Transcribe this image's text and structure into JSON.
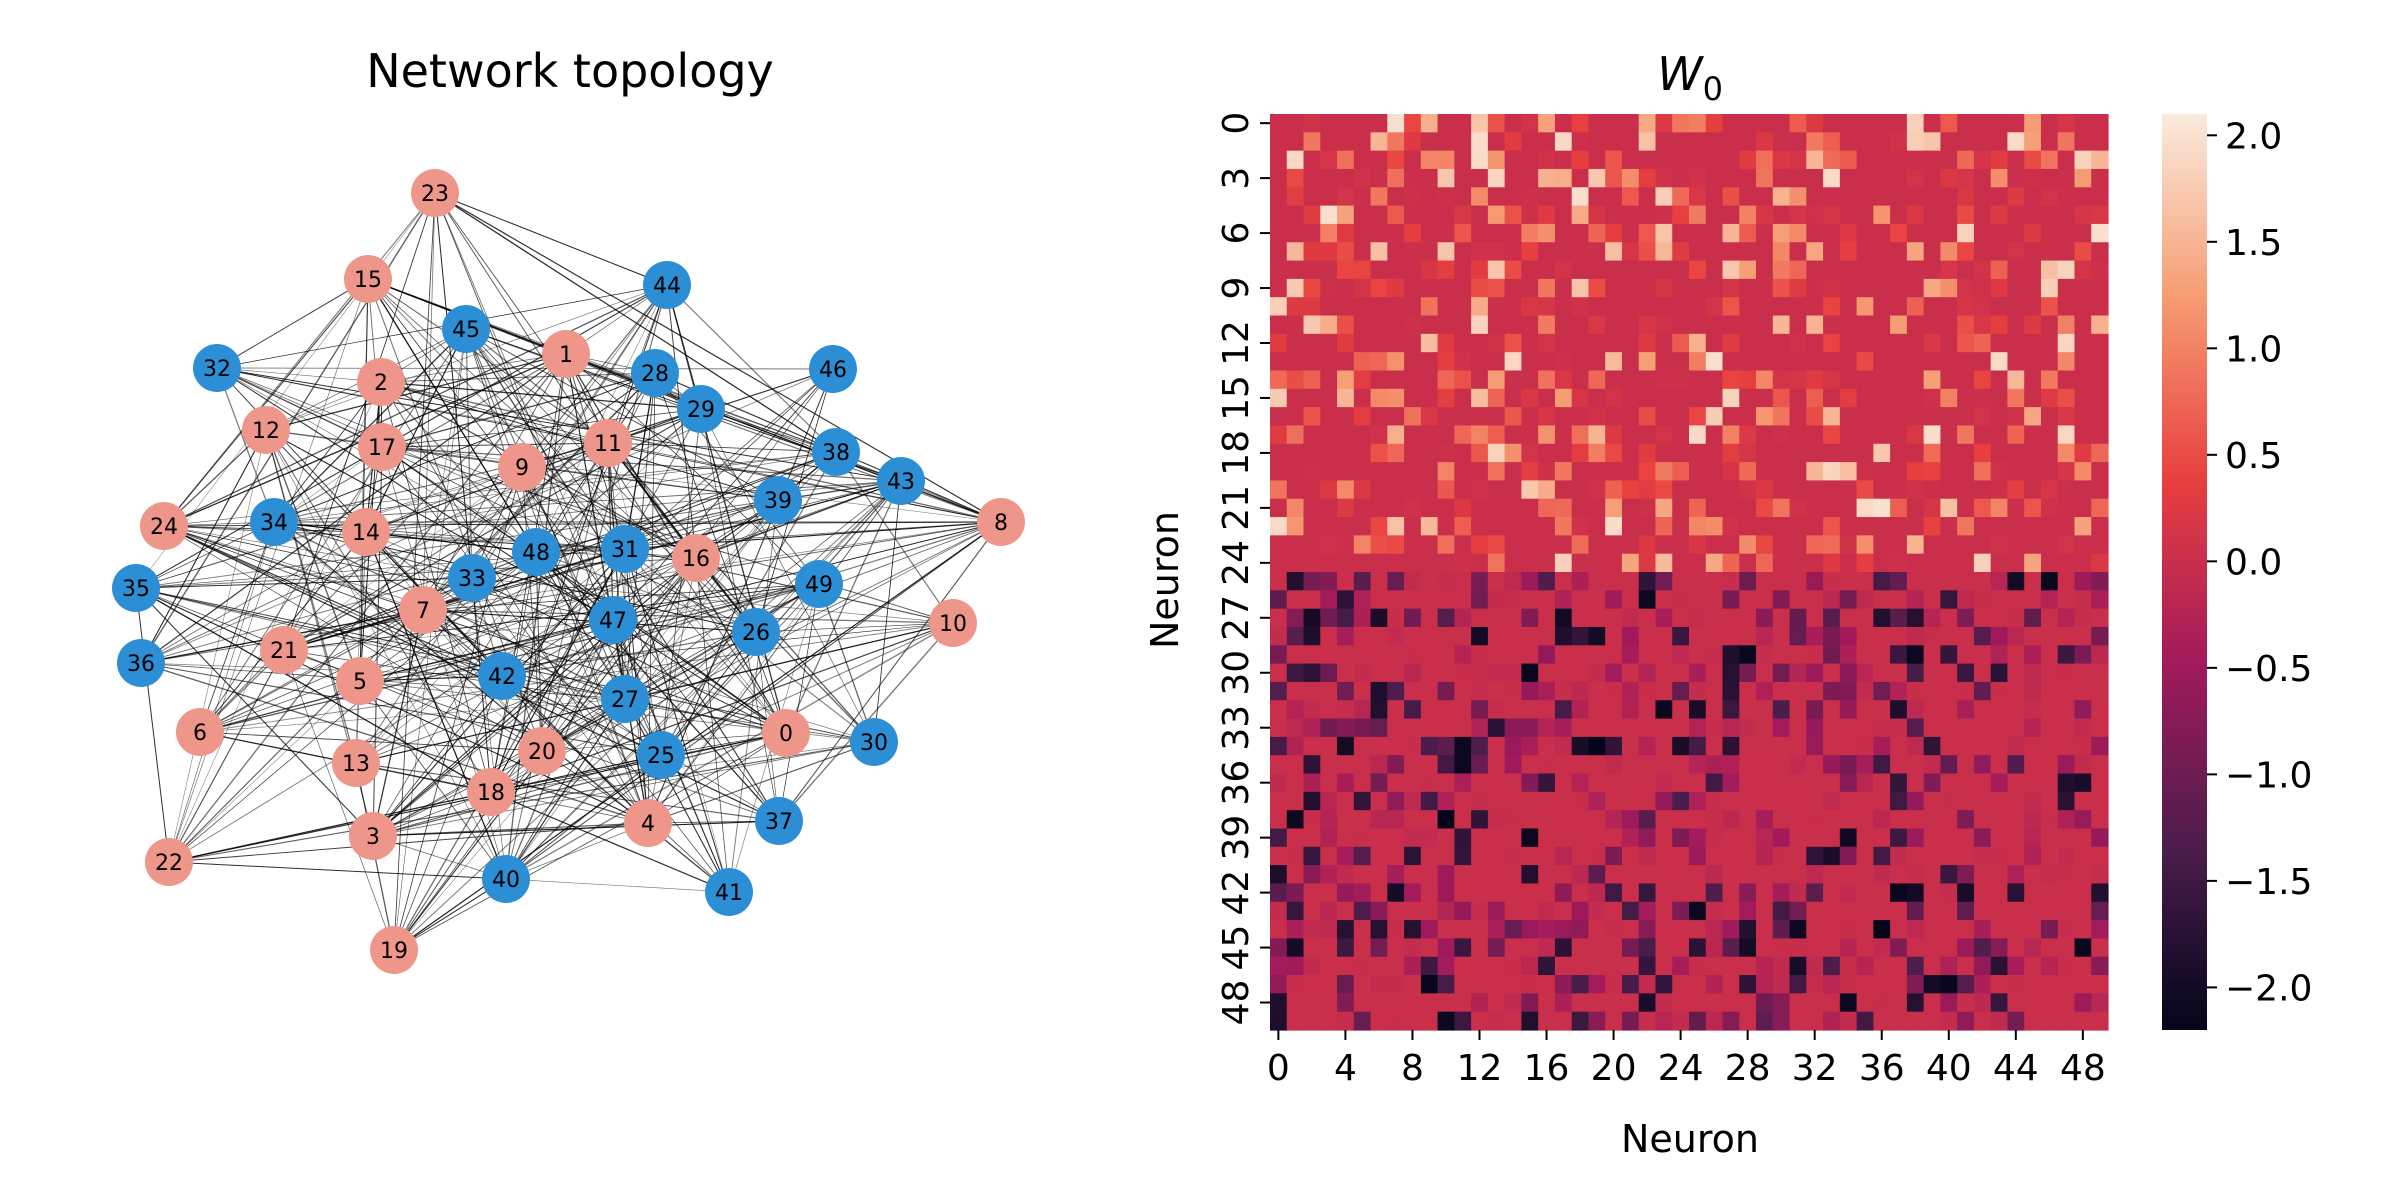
{
  "chart_data": [
    {
      "type": "network",
      "title": "Network topology",
      "group_colors": {
        "excitatory": "#ef968b",
        "inhibitory": "#2c8fd6"
      },
      "nodes": [
        {
          "id": "0",
          "group": "excitatory"
        },
        {
          "id": "1",
          "group": "excitatory"
        },
        {
          "id": "2",
          "group": "excitatory"
        },
        {
          "id": "3",
          "group": "excitatory"
        },
        {
          "id": "4",
          "group": "excitatory"
        },
        {
          "id": "5",
          "group": "excitatory"
        },
        {
          "id": "6",
          "group": "excitatory"
        },
        {
          "id": "7",
          "group": "excitatory"
        },
        {
          "id": "8",
          "group": "excitatory"
        },
        {
          "id": "9",
          "group": "excitatory"
        },
        {
          "id": "10",
          "group": "excitatory"
        },
        {
          "id": "11",
          "group": "excitatory"
        },
        {
          "id": "12",
          "group": "excitatory"
        },
        {
          "id": "13",
          "group": "excitatory"
        },
        {
          "id": "14",
          "group": "excitatory"
        },
        {
          "id": "15",
          "group": "excitatory"
        },
        {
          "id": "16",
          "group": "excitatory"
        },
        {
          "id": "17",
          "group": "excitatory"
        },
        {
          "id": "18",
          "group": "excitatory"
        },
        {
          "id": "19",
          "group": "excitatory"
        },
        {
          "id": "20",
          "group": "excitatory"
        },
        {
          "id": "21",
          "group": "excitatory"
        },
        {
          "id": "22",
          "group": "excitatory"
        },
        {
          "id": "23",
          "group": "excitatory"
        },
        {
          "id": "24",
          "group": "excitatory"
        },
        {
          "id": "25",
          "group": "inhibitory"
        },
        {
          "id": "26",
          "group": "inhibitory"
        },
        {
          "id": "27",
          "group": "inhibitory"
        },
        {
          "id": "28",
          "group": "inhibitory"
        },
        {
          "id": "29",
          "group": "inhibitory"
        },
        {
          "id": "30",
          "group": "inhibitory"
        },
        {
          "id": "31",
          "group": "inhibitory"
        },
        {
          "id": "32",
          "group": "inhibitory"
        },
        {
          "id": "33",
          "group": "inhibitory"
        },
        {
          "id": "34",
          "group": "inhibitory"
        },
        {
          "id": "35",
          "group": "inhibitory"
        },
        {
          "id": "36",
          "group": "inhibitory"
        },
        {
          "id": "37",
          "group": "inhibitory"
        },
        {
          "id": "38",
          "group": "inhibitory"
        },
        {
          "id": "39",
          "group": "inhibitory"
        },
        {
          "id": "40",
          "group": "inhibitory"
        },
        {
          "id": "41",
          "group": "inhibitory"
        },
        {
          "id": "42",
          "group": "inhibitory"
        },
        {
          "id": "43",
          "group": "inhibitory"
        },
        {
          "id": "44",
          "group": "inhibitory"
        },
        {
          "id": "45",
          "group": "inhibitory"
        },
        {
          "id": "46",
          "group": "inhibitory"
        },
        {
          "id": "47",
          "group": "inhibitory"
        },
        {
          "id": "48",
          "group": "inhibitory"
        },
        {
          "id": "49",
          "group": "inhibitory"
        }
      ],
      "edge_color": "#000000",
      "edges": "dense random connectivity among all neurons"
    },
    {
      "type": "heatmap",
      "title_main": "W",
      "title_sub": "0",
      "xlabel": "Neuron",
      "ylabel": "Neuron",
      "size": 50,
      "x_ticks": [
        "0",
        "4",
        "8",
        "12",
        "16",
        "20",
        "24",
        "28",
        "32",
        "36",
        "40",
        "44",
        "48"
      ],
      "y_ticks": [
        "0",
        "3",
        "6",
        "9",
        "12",
        "15",
        "18",
        "21",
        "24",
        "27",
        "30",
        "33",
        "36",
        "39",
        "42",
        "45",
        "48"
      ],
      "colorbar": {
        "ticks": [
          "2.0",
          "1.5",
          "1.0",
          "0.5",
          "0.0",
          "−0.5",
          "−1.0",
          "−1.5",
          "−2.0"
        ],
        "range": [
          -2.2,
          2.1
        ],
        "colors": [
          "#03051a",
          "#4c1d4b",
          "#a11a5b",
          "#e83f3f",
          "#f69c73",
          "#faebdd"
        ]
      },
      "rows_excitatory": "0-24 (values >= 0)",
      "rows_inhibitory": "25-49 (values <= 0)"
    }
  ]
}
